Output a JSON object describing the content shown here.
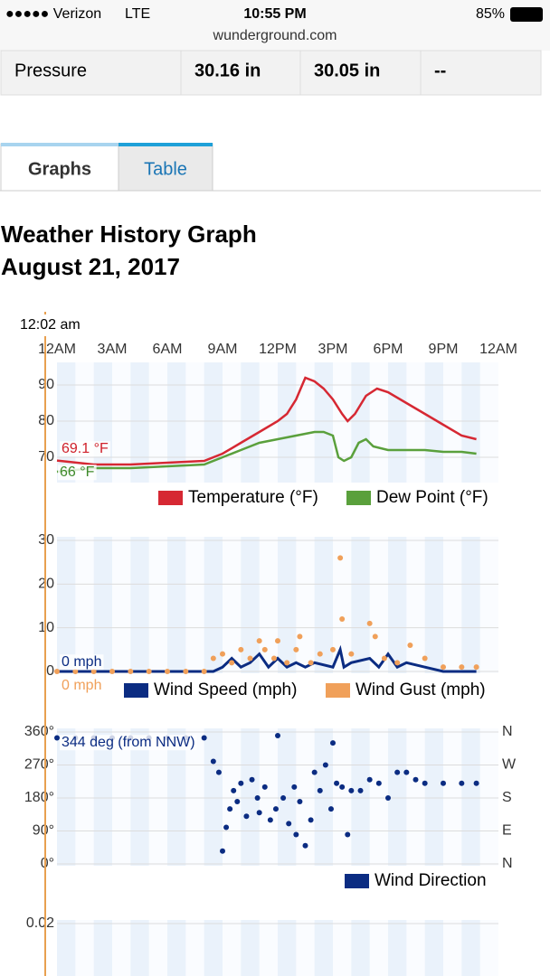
{
  "status_bar": {
    "carrier": "●●●●● Verizon",
    "network": "LTE",
    "time": "10:55 PM",
    "battery": "85%"
  },
  "url": "wunderground.com",
  "pressure_row": [
    "Pressure",
    "30.16 in",
    "30.05 in",
    "--"
  ],
  "tabs": [
    "Graphs",
    "Table"
  ],
  "heading": {
    "title": "Weather History Graph",
    "date": "August 21, 2017"
  },
  "cursor": {
    "label": "12:02 am"
  },
  "charts": [
    {
      "type": "line",
      "xlim": [
        0,
        24
      ],
      "xticks": [
        {
          "value": 0,
          "label": "12AM"
        },
        {
          "value": 3,
          "label": "3AM"
        },
        {
          "value": 6,
          "label": "6AM"
        },
        {
          "value": 9,
          "label": "9AM"
        },
        {
          "value": 12,
          "label": "12PM"
        },
        {
          "value": 15,
          "label": "3PM"
        },
        {
          "value": 18,
          "label": "6PM"
        },
        {
          "value": 21,
          "label": "9PM"
        },
        {
          "value": 24,
          "label": "12AM"
        }
      ],
      "ylim": [
        63.5,
        95.25
      ],
      "yticks": [
        70,
        80,
        90
      ],
      "grid": true,
      "annotations": [
        {
          "text": "69.1 °F",
          "color": "#d0202a"
        },
        {
          "text": "66 °F",
          "color": "#3d8a2a"
        }
      ],
      "series": [
        {
          "name": "Temperature (°F)",
          "color": "#d62833",
          "type": "line",
          "x": [
            0,
            2,
            4,
            6,
            8,
            9,
            10,
            11,
            12,
            12.5,
            13,
            13.5,
            14,
            14.5,
            15,
            15.5,
            15.8,
            16.2,
            16.8,
            17.4,
            18,
            19,
            20,
            21,
            22,
            22.8
          ],
          "values": [
            69.1,
            68,
            68,
            68.5,
            69,
            71,
            74,
            77,
            80,
            82,
            86,
            92,
            91,
            89,
            86,
            82,
            80,
            82,
            87,
            89,
            88,
            85,
            82,
            79,
            76,
            75
          ]
        },
        {
          "name": "Dew Point (°F)",
          "color": "#5aa03c",
          "type": "line",
          "x": [
            0,
            2,
            4,
            6,
            8,
            9,
            10,
            11,
            12,
            13,
            14,
            14.5,
            15,
            15.3,
            15.6,
            16,
            16.4,
            16.8,
            17.2,
            18,
            19,
            20,
            21,
            22,
            22.8
          ],
          "values": [
            66,
            67,
            67,
            67.5,
            68,
            70,
            72,
            74,
            75,
            76,
            77,
            77,
            76,
            70,
            69,
            70,
            74,
            75,
            73,
            72,
            72,
            72,
            71.5,
            71.5,
            71
          ]
        }
      ]
    },
    {
      "type": "line",
      "xlim": [
        0,
        24
      ],
      "ylim": [
        0,
        30
      ],
      "yticks": [
        0,
        10,
        20,
        30
      ],
      "grid": true,
      "annotations": [
        {
          "text": "0 mph",
          "color": "#0b2c82"
        },
        {
          "text": "0 mph",
          "color": "#f0a05a"
        }
      ],
      "series": [
        {
          "name": "Wind Speed (mph)",
          "color": "#0b2c82",
          "type": "line",
          "x": [
            0,
            8.5,
            9,
            9.5,
            10,
            10.5,
            11,
            11.5,
            12,
            12.5,
            13,
            13.5,
            14,
            15,
            15.4,
            15.6,
            16,
            17,
            17.5,
            18,
            18.5,
            19,
            20,
            21,
            22.8
          ],
          "values": [
            0,
            0,
            1,
            3,
            1,
            2,
            4,
            1,
            3,
            1,
            2,
            1,
            2,
            1,
            5,
            1,
            2,
            3,
            1,
            4,
            1,
            2,
            1,
            0,
            0
          ]
        },
        {
          "name": "Wind Gust (mph)",
          "color": "#f0a05a",
          "type": "scatter",
          "x": [
            0,
            1,
            2,
            3,
            4,
            5,
            6,
            7,
            8,
            8.5,
            9,
            9.5,
            10,
            10.5,
            11,
            11.3,
            11.8,
            12,
            12.5,
            13,
            13.2,
            13.8,
            14.3,
            15,
            15.4,
            15.5,
            16,
            17,
            17.3,
            17.8,
            18.5,
            19.2,
            20,
            21,
            22,
            22.8
          ],
          "values": [
            0,
            0,
            0,
            0,
            0,
            0,
            0,
            0,
            0,
            3,
            4,
            2,
            5,
            3,
            7,
            5,
            3,
            7,
            2,
            5,
            8,
            2,
            4,
            5,
            26,
            12,
            4,
            11,
            8,
            3,
            2,
            6,
            3,
            1,
            1,
            1
          ]
        }
      ]
    },
    {
      "type": "scatter",
      "xlim": [
        0,
        24
      ],
      "ylim": [
        0,
        360
      ],
      "yticks": [
        {
          "value": 0,
          "label": "0°"
        },
        {
          "value": 90,
          "label": "90°"
        },
        {
          "value": 180,
          "label": "180°"
        },
        {
          "value": 270,
          "label": "270°"
        },
        {
          "value": 360,
          "label": "360°"
        }
      ],
      "y2ticks": [
        {
          "value": 0,
          "label": "N"
        },
        {
          "value": 90,
          "label": "E"
        },
        {
          "value": 180,
          "label": "S"
        },
        {
          "value": 270,
          "label": "W"
        },
        {
          "value": 360,
          "label": "N"
        }
      ],
      "grid": true,
      "annotations": [
        {
          "text": "344 deg (from NNW)",
          "color": "#0b2c82"
        }
      ],
      "series": [
        {
          "name": "Wind Direction",
          "color": "#0b2c82",
          "type": "scatter",
          "x": [
            0,
            1,
            2,
            3,
            4,
            5,
            6,
            7,
            8,
            8.5,
            8.8,
            9,
            9.2,
            9.4,
            9.6,
            9.8,
            10,
            10.3,
            10.6,
            10.9,
            11,
            11.3,
            11.6,
            11.9,
            12,
            12.3,
            12.6,
            12.9,
            13,
            13.2,
            13.5,
            13.8,
            14,
            14.3,
            14.6,
            14.9,
            15,
            15.2,
            15.5,
            15.8,
            16,
            16.5,
            17,
            17.5,
            18,
            18.5,
            19,
            19.5,
            20,
            21,
            22,
            22.8
          ],
          "values": [
            344,
            344,
            344,
            344,
            344,
            344,
            344,
            344,
            344,
            280,
            250,
            35,
            100,
            150,
            200,
            170,
            220,
            130,
            230,
            180,
            140,
            210,
            120,
            150,
            350,
            180,
            110,
            210,
            80,
            170,
            50,
            120,
            250,
            200,
            270,
            150,
            330,
            220,
            210,
            80,
            200,
            200,
            230,
            220,
            180,
            250,
            250,
            230,
            220,
            220,
            220,
            220
          ]
        }
      ]
    },
    {
      "type": "line",
      "xlim": [
        0,
        24
      ],
      "ylim": [
        0,
        0.02
      ],
      "yticks": [
        0.02
      ],
      "grid": true
    }
  ]
}
